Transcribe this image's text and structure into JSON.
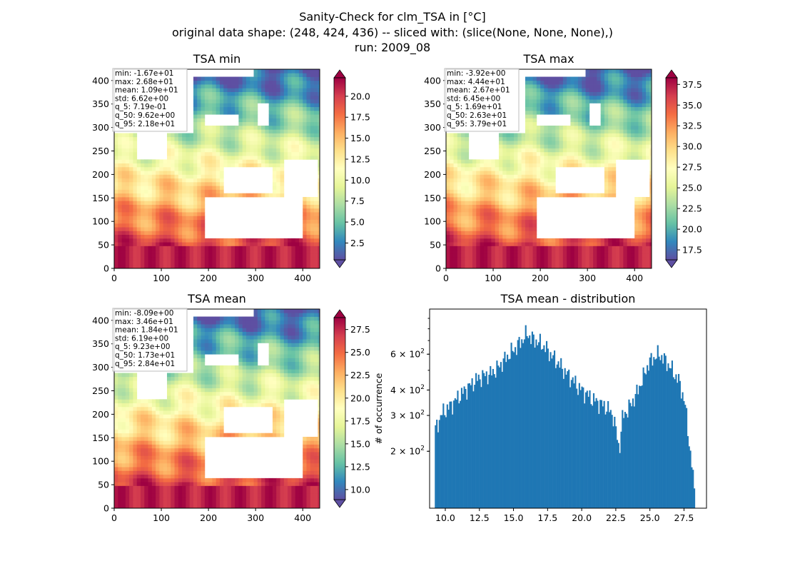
{
  "figure": {
    "title_lines": [
      "Sanity-Check for clm_TSA in [°C]",
      "original data shape: (248, 424, 436) -- sliced with: (slice(None, None, None),)",
      "run: 2009_08"
    ]
  },
  "colors": {
    "histogram": "#1f77b4",
    "colormap": "Spectral_r",
    "colormap_stops": [
      "#5e4fa2",
      "#3288bd",
      "#66c2a5",
      "#abdda4",
      "#e6f598",
      "#ffffbf",
      "#fee08b",
      "#fdae61",
      "#f46d43",
      "#d53e4f",
      "#9e0142"
    ]
  },
  "chart_data": [
    {
      "type": "heatmap",
      "title": "TSA min",
      "x_ticks": [
        0,
        100,
        200,
        300,
        400
      ],
      "y_ticks": [
        0,
        50,
        100,
        150,
        200,
        250,
        300,
        350,
        400
      ],
      "xlim": [
        0,
        436
      ],
      "ylim": [
        0,
        424
      ],
      "colorbar": {
        "vmin": 0.5,
        "vmax": 22.2,
        "ticks": [
          "2.5",
          "5.0",
          "7.5",
          "10.0",
          "12.5",
          "15.0",
          "17.5",
          "20.0"
        ],
        "extend": "both"
      },
      "stats": [
        "min: -1.67e+01",
        "max: 2.68e+01",
        "mean: 1.09e+01",
        "std: 6.62e+00",
        "q_5: 7.19e-01",
        "q_50: 9.62e+00",
        "q_95: 2.18e+01"
      ]
    },
    {
      "type": "heatmap",
      "title": "TSA max",
      "x_ticks": [
        0,
        100,
        200,
        300,
        400
      ],
      "y_ticks": [
        0,
        50,
        100,
        150,
        200,
        250,
        300,
        350,
        400
      ],
      "xlim": [
        0,
        436
      ],
      "ylim": [
        0,
        424
      ],
      "colorbar": {
        "vmin": 16.3,
        "vmax": 38.3,
        "ticks": [
          "17.5",
          "20.0",
          "22.5",
          "25.0",
          "27.5",
          "30.0",
          "32.5",
          "35.0",
          "37.5"
        ],
        "extend": "both"
      },
      "stats": [
        "min: -3.92e+00",
        "max: 4.44e+01",
        "mean: 2.67e+01",
        "std: 6.45e+00",
        "q_5: 1.69e+01",
        "q_50: 2.63e+01",
        "q_95: 3.79e+01"
      ]
    },
    {
      "type": "heatmap",
      "title": "TSA mean",
      "x_ticks": [
        0,
        100,
        200,
        300,
        400
      ],
      "y_ticks": [
        0,
        50,
        100,
        150,
        200,
        250,
        300,
        350,
        400
      ],
      "xlim": [
        0,
        436
      ],
      "ylim": [
        0,
        424
      ],
      "colorbar": {
        "vmin": 8.9,
        "vmax": 28.8,
        "ticks": [
          "10.0",
          "12.5",
          "15.0",
          "17.5",
          "20.0",
          "22.5",
          "25.0",
          "27.5"
        ],
        "extend": "both"
      },
      "stats": [
        "min: -8.09e+00",
        "max: 3.46e+01",
        "mean: 1.84e+01",
        "std: 6.19e+00",
        "q_5: 9.23e+00",
        "q_50: 1.73e+01",
        "q_95: 2.84e+01"
      ]
    },
    {
      "type": "bar",
      "title": "TSA mean - distribution",
      "ylabel": "# of occurrence",
      "y_scale": "log",
      "xlim": [
        8.85,
        29.15
      ],
      "ylim": [
        105,
        1000
      ],
      "x_ticks": [
        "10.0",
        "12.5",
        "15.0",
        "17.5",
        "20.0",
        "22.5",
        "25.0",
        "27.5"
      ],
      "y_ticks": [
        {
          "value": 200,
          "mantissa": "2 × 10",
          "exp": "2"
        },
        {
          "value": 300,
          "mantissa": "3 × 10",
          "exp": "2"
        },
        {
          "value": 400,
          "mantissa": "4 × 10",
          "exp": "2"
        },
        {
          "value": 600,
          "mantissa": "6 × 10",
          "exp": "2"
        }
      ],
      "bins": {
        "start": 9.23,
        "end": 28.4
      },
      "profile": [
        [
          9.23,
          250
        ],
        [
          9.4,
          270
        ],
        [
          9.8,
          310
        ],
        [
          10.3,
          330
        ],
        [
          10.8,
          360
        ],
        [
          11.3,
          390
        ],
        [
          11.8,
          420
        ],
        [
          12.3,
          450
        ],
        [
          12.8,
          470
        ],
        [
          13.3,
          480
        ],
        [
          13.8,
          510
        ],
        [
          14.3,
          560
        ],
        [
          14.8,
          610
        ],
        [
          15.2,
          650
        ],
        [
          15.6,
          700
        ],
        [
          16.0,
          760
        ],
        [
          16.3,
          720
        ],
        [
          16.8,
          690
        ],
        [
          17.3,
          650
        ],
        [
          17.8,
          590
        ],
        [
          18.3,
          540
        ],
        [
          18.8,
          490
        ],
        [
          19.3,
          450
        ],
        [
          19.8,
          410
        ],
        [
          20.3,
          385
        ],
        [
          20.8,
          360
        ],
        [
          21.3,
          345
        ],
        [
          21.8,
          330
        ],
        [
          22.3,
          300
        ],
        [
          22.75,
          200
        ],
        [
          23.0,
          295
        ],
        [
          23.5,
          330
        ],
        [
          24.0,
          380
        ],
        [
          24.5,
          460
        ],
        [
          24.9,
          540
        ],
        [
          25.3,
          580
        ],
        [
          25.7,
          600
        ],
        [
          26.0,
          570
        ],
        [
          26.4,
          530
        ],
        [
          26.8,
          480
        ],
        [
          27.2,
          430
        ],
        [
          27.6,
          330
        ],
        [
          27.9,
          210
        ],
        [
          28.2,
          140
        ],
        [
          28.4,
          110
        ]
      ]
    }
  ]
}
